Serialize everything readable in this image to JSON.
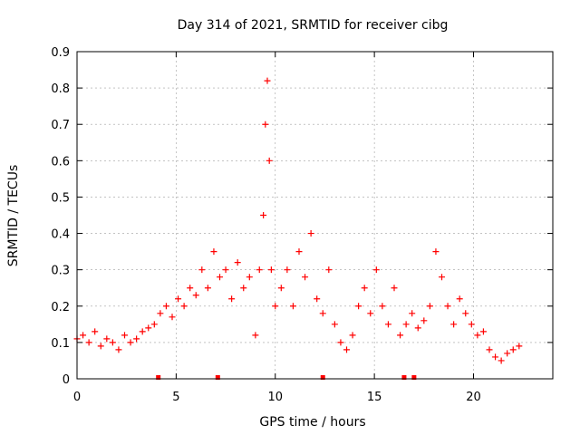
{
  "chart_data": {
    "type": "scatter",
    "title": "Day 314 of 2021, SRMTID for receiver cibg",
    "xlabel": "GPS time / hours",
    "ylabel": "SRMTID / TECUs",
    "xlim": [
      0,
      24
    ],
    "ylim": [
      0,
      0.9
    ],
    "xticks": [
      "0",
      "5",
      "10",
      "15",
      "20"
    ],
    "yticks": [
      "0",
      "0.1",
      "0.2",
      "0.3",
      "0.4",
      "0.5",
      "0.6",
      "0.7",
      "0.8",
      "0.9"
    ],
    "grid": true,
    "marker": "plus",
    "series_color": "#ff0000",
    "series": [
      {
        "name": "SRMTID",
        "x": [
          0.0,
          0.3,
          0.6,
          0.9,
          1.2,
          1.5,
          1.8,
          2.1,
          2.4,
          2.7,
          3.0,
          3.3,
          3.6,
          3.9,
          4.2,
          4.5,
          4.8,
          5.1,
          5.4,
          5.7,
          6.0,
          6.3,
          6.6,
          6.9,
          7.2,
          7.5,
          7.8,
          8.1,
          8.4,
          8.7,
          9.0,
          9.2,
          9.4,
          9.5,
          9.6,
          9.7,
          9.8,
          10.0,
          10.3,
          10.6,
          10.9,
          11.2,
          11.5,
          11.8,
          12.1,
          12.4,
          12.7,
          13.0,
          13.3,
          13.6,
          13.9,
          14.2,
          14.5,
          14.8,
          15.1,
          15.4,
          15.7,
          16.0,
          16.3,
          16.6,
          16.9,
          17.2,
          17.5,
          17.8,
          18.1,
          18.4,
          18.7,
          19.0,
          19.3,
          19.6,
          19.9,
          20.2,
          20.5,
          20.8,
          21.1,
          21.4,
          21.7,
          22.0,
          22.3
        ],
        "y": [
          0.11,
          0.12,
          0.1,
          0.13,
          0.09,
          0.11,
          0.1,
          0.08,
          0.12,
          0.1,
          0.11,
          0.13,
          0.14,
          0.15,
          0.18,
          0.2,
          0.17,
          0.22,
          0.2,
          0.25,
          0.23,
          0.3,
          0.25,
          0.35,
          0.28,
          0.3,
          0.22,
          0.32,
          0.25,
          0.28,
          0.12,
          0.3,
          0.45,
          0.7,
          0.82,
          0.6,
          0.3,
          0.2,
          0.25,
          0.3,
          0.2,
          0.35,
          0.28,
          0.4,
          0.22,
          0.18,
          0.3,
          0.15,
          0.1,
          0.08,
          0.12,
          0.2,
          0.25,
          0.18,
          0.3,
          0.2,
          0.15,
          0.25,
          0.12,
          0.15,
          0.18,
          0.14,
          0.16,
          0.2,
          0.35,
          0.28,
          0.2,
          0.15,
          0.22,
          0.18,
          0.15,
          0.12,
          0.13,
          0.08,
          0.06,
          0.05,
          0.07,
          0.08,
          0.09
        ]
      }
    ],
    "bottom_markers": [
      4.1,
      7.1,
      12.4,
      16.5,
      17.0
    ]
  }
}
